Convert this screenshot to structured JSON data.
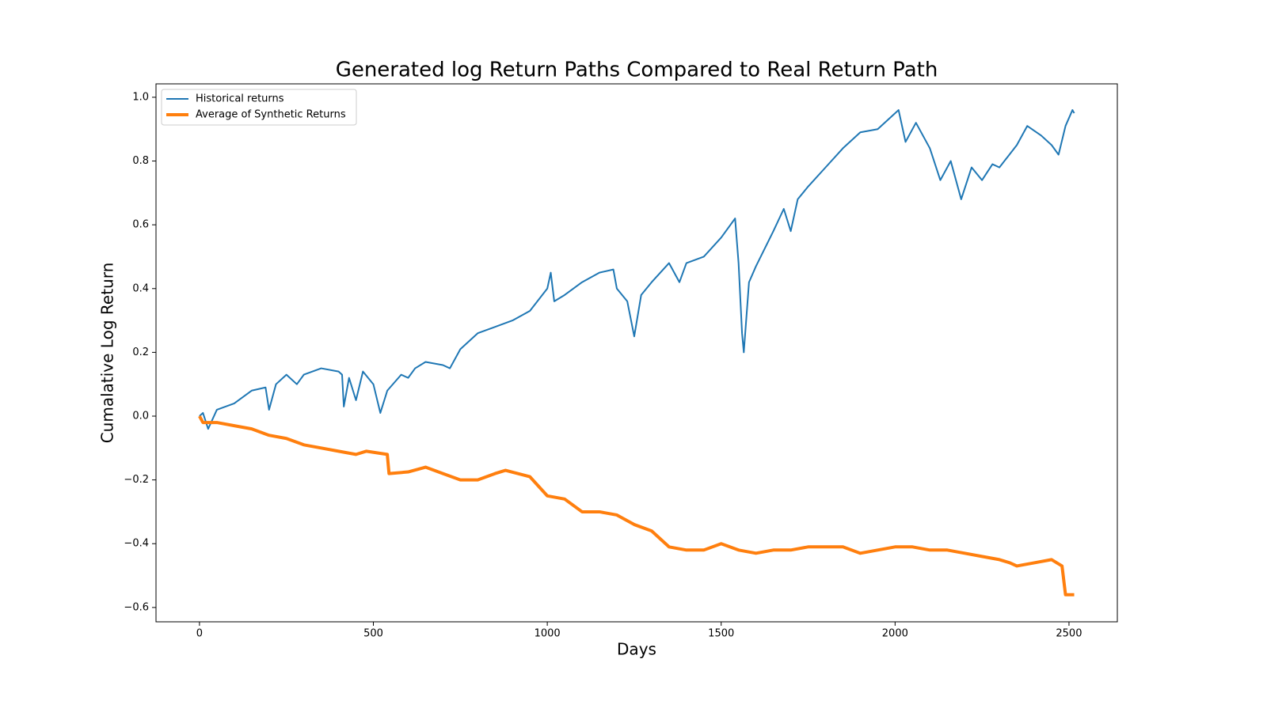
{
  "chart_data": {
    "type": "line",
    "title": "Generated log Return Paths Compared to Real Return Path",
    "x_label": "Days",
    "y_label": "Cumalative Log Return",
    "xlim": [
      -125,
      2639
    ],
    "ylim": [
      -0.645,
      1.042
    ],
    "xticks": [
      0,
      500,
      1000,
      1500,
      2000,
      2500
    ],
    "yticks": [
      {
        "value": -0.6,
        "label": "−0.6"
      },
      {
        "value": -0.4,
        "label": "−0.4"
      },
      {
        "value": -0.2,
        "label": "−0.2"
      },
      {
        "value": 0,
        "label": "0.0"
      },
      0.2,
      0.4,
      0.6,
      0.8,
      {
        "value": 1,
        "label": "1.0"
      }
    ],
    "legend": "upper left",
    "series": [
      {
        "name": "Historical returns",
        "color": "#1f77b4",
        "line_width": 2,
        "x": [
          0,
          10,
          25,
          50,
          100,
          150,
          190,
          200,
          220,
          250,
          280,
          300,
          350,
          400,
          410,
          415,
          430,
          450,
          470,
          500,
          520,
          540,
          580,
          600,
          620,
          650,
          700,
          720,
          750,
          800,
          850,
          900,
          950,
          1000,
          1010,
          1020,
          1050,
          1100,
          1150,
          1190,
          1200,
          1230,
          1250,
          1270,
          1300,
          1350,
          1380,
          1400,
          1450,
          1500,
          1540,
          1550,
          1560,
          1565,
          1580,
          1600,
          1650,
          1680,
          1700,
          1720,
          1750,
          1800,
          1850,
          1900,
          1950,
          2000,
          2010,
          2030,
          2060,
          2100,
          2130,
          2160,
          2190,
          2220,
          2250,
          2280,
          2300,
          2350,
          2380,
          2420,
          2450,
          2470,
          2490,
          2510,
          2515
        ],
        "values": [
          0,
          0.01,
          -0.04,
          0.02,
          0.04,
          0.08,
          0.09,
          0.02,
          0.1,
          0.13,
          0.1,
          0.13,
          0.15,
          0.14,
          0.13,
          0.03,
          0.12,
          0.05,
          0.14,
          0.1,
          0.01,
          0.08,
          0.13,
          0.12,
          0.15,
          0.17,
          0.16,
          0.15,
          0.21,
          0.26,
          0.28,
          0.3,
          0.33,
          0.4,
          0.45,
          0.36,
          0.38,
          0.42,
          0.45,
          0.46,
          0.4,
          0.36,
          0.25,
          0.38,
          0.42,
          0.48,
          0.42,
          0.48,
          0.5,
          0.56,
          0.62,
          0.48,
          0.26,
          0.2,
          0.42,
          0.47,
          0.58,
          0.65,
          0.58,
          0.68,
          0.72,
          0.78,
          0.84,
          0.89,
          0.9,
          0.95,
          0.96,
          0.86,
          0.92,
          0.84,
          0.74,
          0.8,
          0.68,
          0.78,
          0.74,
          0.79,
          0.78,
          0.85,
          0.91,
          0.88,
          0.85,
          0.82,
          0.91,
          0.96,
          0.95
        ]
      },
      {
        "name": "Average of Synthetic Returns",
        "color": "#ff7f0e",
        "line_width": 4,
        "x": [
          0,
          10,
          50,
          100,
          150,
          200,
          250,
          300,
          350,
          400,
          450,
          480,
          540,
          545,
          600,
          650,
          700,
          750,
          800,
          850,
          880,
          950,
          1000,
          1050,
          1100,
          1150,
          1200,
          1250,
          1300,
          1350,
          1400,
          1450,
          1500,
          1550,
          1600,
          1650,
          1700,
          1750,
          1800,
          1850,
          1900,
          1950,
          2000,
          2050,
          2100,
          2150,
          2200,
          2250,
          2300,
          2330,
          2350,
          2400,
          2450,
          2480,
          2490,
          2500,
          2515
        ],
        "values": [
          0,
          -0.02,
          -0.02,
          -0.03,
          -0.04,
          -0.06,
          -0.07,
          -0.09,
          -0.1,
          -0.11,
          -0.12,
          -0.11,
          -0.12,
          -0.18,
          -0.175,
          -0.16,
          -0.18,
          -0.2,
          -0.2,
          -0.18,
          -0.17,
          -0.19,
          -0.25,
          -0.26,
          -0.3,
          -0.3,
          -0.31,
          -0.34,
          -0.36,
          -0.41,
          -0.42,
          -0.42,
          -0.4,
          -0.42,
          -0.43,
          -0.42,
          -0.42,
          -0.41,
          -0.41,
          -0.41,
          -0.43,
          -0.42,
          -0.41,
          -0.41,
          -0.42,
          -0.42,
          -0.43,
          -0.44,
          -0.45,
          -0.46,
          -0.47,
          -0.46,
          -0.45,
          -0.47,
          -0.56,
          -0.56,
          -0.56
        ]
      }
    ]
  }
}
